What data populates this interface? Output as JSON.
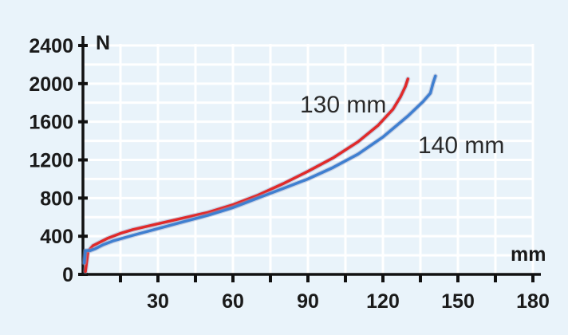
{
  "chart_data": {
    "type": "line",
    "title": "",
    "xlabel": "mm",
    "ylabel": "N",
    "xlim": [
      0,
      180
    ],
    "ylim": [
      0,
      2400
    ],
    "x_ticks": [
      30,
      60,
      90,
      120,
      150,
      180
    ],
    "x_tick_labels": [
      "30",
      "60",
      "90",
      "120",
      "150",
      "180"
    ],
    "y_ticks": [
      0,
      400,
      800,
      1200,
      1600,
      2000,
      2400
    ],
    "y_tick_labels": [
      "0",
      "400",
      "800",
      "1200",
      "1600",
      "2000",
      "2400"
    ],
    "grid": true,
    "series": [
      {
        "name": "130 mm",
        "color": "#e02a2a",
        "x": [
          1,
          2,
          4,
          7,
          10,
          15,
          20,
          30,
          40,
          50,
          60,
          70,
          80,
          90,
          100,
          110,
          118,
          124,
          127,
          129,
          130
        ],
        "y": [
          30,
          240,
          300,
          340,
          380,
          430,
          470,
          530,
          590,
          650,
          730,
          830,
          950,
          1080,
          1220,
          1390,
          1560,
          1730,
          1860,
          1970,
          2050
        ]
      },
      {
        "name": "140 mm",
        "color": "#3f7fd0",
        "x": [
          0.5,
          1,
          3,
          5,
          8,
          12,
          20,
          30,
          40,
          50,
          60,
          70,
          80,
          90,
          100,
          110,
          120,
          130,
          136,
          139,
          140,
          141
        ],
        "y": [
          120,
          250,
          250,
          270,
          310,
          350,
          410,
          480,
          550,
          620,
          700,
          800,
          900,
          1000,
          1120,
          1260,
          1440,
          1660,
          1810,
          1900,
          2000,
          2080
        ]
      }
    ]
  }
}
